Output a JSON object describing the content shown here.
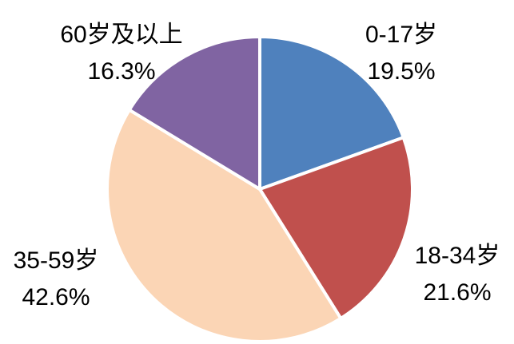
{
  "chart_data": {
    "type": "pie",
    "categories": [
      "0-17岁",
      "18-34岁",
      "35-59岁",
      "60岁及以上"
    ],
    "values": [
      19.5,
      21.6,
      42.6,
      16.3
    ],
    "value_labels": [
      "19.5%",
      "21.6%",
      "42.6%",
      "16.3%"
    ],
    "colors": [
      "#4f81bd",
      "#c0504d",
      "#fbd5b5",
      "#8064a2"
    ]
  }
}
